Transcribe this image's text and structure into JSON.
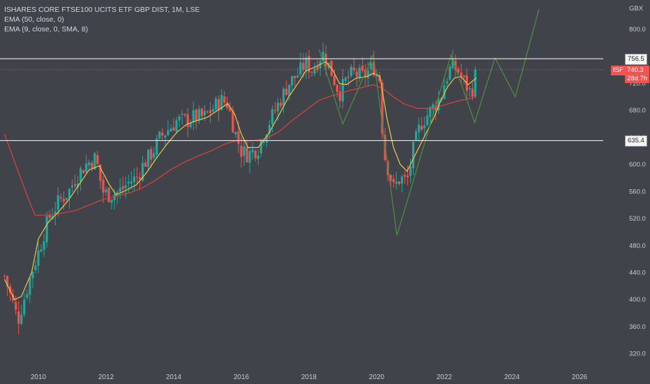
{
  "legend": {
    "title": "ISHARES CORE FTSE100 UCITS ETF GBP DIST, 1M, LSE",
    "ema50": "EMA (50, close, 0)",
    "ema9": "EMA (9, close, 0, SMA, 8)"
  },
  "axis": {
    "currency": "GBX",
    "y_ticks": [
      "800.0",
      "760.0",
      "720.0",
      "680.0",
      "640.0",
      "600.0",
      "560.0",
      "520.0",
      "480.0",
      "440.0",
      "400.0",
      "360.0",
      "320.0"
    ],
    "x_ticks": [
      "2010",
      "2012",
      "2014",
      "2016",
      "2018",
      "2020",
      "2022",
      "2024",
      "2026"
    ]
  },
  "price_tags": {
    "resistance": "756.5",
    "support": "635.4",
    "symbol": "ISF",
    "last_price": "740.3",
    "countdown": "28d 7h"
  },
  "colors": {
    "background": "#41434b",
    "up": "#26a69a",
    "down": "#ef5350",
    "ema50": "#e0413a",
    "ema9": "#e6c84a",
    "projection": "#4f8a3e",
    "hline": "#ffffff"
  },
  "chart_data": {
    "type": "candlestick",
    "interval": "1M",
    "ylim": [
      320,
      820
    ],
    "horizontal_levels": [
      756.5,
      635.4
    ],
    "last_price": 740.3,
    "close_path": [
      [
        2009.0,
        435
      ],
      [
        2009.4,
        370
      ],
      [
        2009.8,
        440
      ],
      [
        2010.0,
        470
      ],
      [
        2010.3,
        520
      ],
      [
        2010.6,
        545
      ],
      [
        2010.9,
        560
      ],
      [
        2011.1,
        580
      ],
      [
        2011.4,
        600
      ],
      [
        2011.7,
        610
      ],
      [
        2011.9,
        560
      ],
      [
        2012.1,
        555
      ],
      [
        2012.4,
        560
      ],
      [
        2012.7,
        575
      ],
      [
        2012.9,
        580
      ],
      [
        2013.1,
        600
      ],
      [
        2013.4,
        620
      ],
      [
        2013.6,
        640
      ],
      [
        2013.9,
        655
      ],
      [
        2014.1,
        665
      ],
      [
        2014.4,
        665
      ],
      [
        2014.6,
        670
      ],
      [
        2014.9,
        670
      ],
      [
        2015.1,
        680
      ],
      [
        2015.4,
        695
      ],
      [
        2015.6,
        690
      ],
      [
        2015.8,
        650
      ],
      [
        2016.0,
        620
      ],
      [
        2016.2,
        615
      ],
      [
        2016.5,
        625
      ],
      [
        2016.8,
        660
      ],
      [
        2017.1,
        690
      ],
      [
        2017.4,
        720
      ],
      [
        2017.7,
        735
      ],
      [
        2017.9,
        750
      ],
      [
        2018.1,
        740
      ],
      [
        2018.4,
        765
      ],
      [
        2018.6,
        745
      ],
      [
        2018.9,
        705
      ],
      [
        2019.1,
        725
      ],
      [
        2019.3,
        735
      ],
      [
        2019.6,
        730
      ],
      [
        2019.9,
        745
      ],
      [
        2020.1,
        725
      ],
      [
        2020.2,
        620
      ],
      [
        2020.5,
        565
      ],
      [
        2020.7,
        580
      ],
      [
        2020.9,
        575
      ],
      [
        2021.1,
        625
      ],
      [
        2021.3,
        660
      ],
      [
        2021.6,
        680
      ],
      [
        2021.9,
        700
      ],
      [
        2022.0,
        720
      ],
      [
        2022.2,
        745
      ],
      [
        2022.4,
        740
      ],
      [
        2022.6,
        720
      ],
      [
        2022.8,
        705
      ],
      [
        2022.95,
        740.3
      ]
    ],
    "ema50_path": [
      [
        2009.0,
        645
      ],
      [
        2009.4,
        590
      ],
      [
        2009.7,
        550
      ],
      [
        2009.9,
        525
      ],
      [
        2010.3,
        525
      ],
      [
        2010.7,
        528
      ],
      [
        2011.1,
        532
      ],
      [
        2011.5,
        540
      ],
      [
        2011.9,
        548
      ],
      [
        2012.3,
        553
      ],
      [
        2012.7,
        558
      ],
      [
        2013.1,
        566
      ],
      [
        2013.5,
        578
      ],
      [
        2013.9,
        592
      ],
      [
        2014.3,
        603
      ],
      [
        2014.7,
        612
      ],
      [
        2015.1,
        620
      ],
      [
        2015.5,
        630
      ],
      [
        2015.9,
        636
      ],
      [
        2016.3,
        635
      ],
      [
        2016.7,
        638
      ],
      [
        2017.1,
        648
      ],
      [
        2017.5,
        665
      ],
      [
        2017.9,
        680
      ],
      [
        2018.3,
        695
      ],
      [
        2018.7,
        702
      ],
      [
        2019.1,
        708
      ],
      [
        2019.5,
        713
      ],
      [
        2019.9,
        718
      ],
      [
        2020.2,
        712
      ],
      [
        2020.5,
        700
      ],
      [
        2020.8,
        690
      ],
      [
        2021.2,
        683
      ],
      [
        2021.6,
        683
      ],
      [
        2022.0,
        688
      ],
      [
        2022.4,
        694
      ],
      [
        2022.7,
        697
      ],
      [
        2022.95,
        700
      ]
    ],
    "ema9_path": [
      [
        2009.0,
        430
      ],
      [
        2009.3,
        400
      ],
      [
        2009.5,
        405
      ],
      [
        2009.8,
        440
      ],
      [
        2010.0,
        490
      ],
      [
        2010.3,
        515
      ],
      [
        2010.6,
        530
      ],
      [
        2010.9,
        548
      ],
      [
        2011.2,
        570
      ],
      [
        2011.5,
        592
      ],
      [
        2011.8,
        598
      ],
      [
        2012.1,
        570
      ],
      [
        2012.3,
        555
      ],
      [
        2012.6,
        562
      ],
      [
        2012.9,
        570
      ],
      [
        2013.2,
        588
      ],
      [
        2013.5,
        610
      ],
      [
        2013.8,
        630
      ],
      [
        2014.1,
        648
      ],
      [
        2014.4,
        660
      ],
      [
        2014.7,
        665
      ],
      [
        2015.0,
        670
      ],
      [
        2015.3,
        680
      ],
      [
        2015.6,
        690
      ],
      [
        2015.8,
        675
      ],
      [
        2016.0,
        645
      ],
      [
        2016.2,
        625
      ],
      [
        2016.5,
        625
      ],
      [
        2016.8,
        645
      ],
      [
        2017.1,
        672
      ],
      [
        2017.4,
        700
      ],
      [
        2017.7,
        722
      ],
      [
        2017.9,
        738
      ],
      [
        2018.2,
        745
      ],
      [
        2018.5,
        752
      ],
      [
        2018.7,
        740
      ],
      [
        2018.9,
        720
      ],
      [
        2019.1,
        718
      ],
      [
        2019.4,
        728
      ],
      [
        2019.7,
        730
      ],
      [
        2019.9,
        735
      ],
      [
        2020.1,
        730
      ],
      [
        2020.3,
        670
      ],
      [
        2020.5,
        625
      ],
      [
        2020.7,
        600
      ],
      [
        2020.9,
        590
      ],
      [
        2021.1,
        610
      ],
      [
        2021.4,
        640
      ],
      [
        2021.7,
        670
      ],
      [
        2021.9,
        695
      ],
      [
        2022.1,
        715
      ],
      [
        2022.3,
        728
      ],
      [
        2022.5,
        730
      ],
      [
        2022.7,
        718
      ],
      [
        2022.95,
        728
      ]
    ],
    "projection_path": [
      [
        2018.3,
        770
      ],
      [
        2019.0,
        660
      ],
      [
        2019.9,
        762
      ],
      [
        2020.6,
        495
      ],
      [
        2022.2,
        762
      ],
      [
        2022.9,
        662
      ],
      [
        2023.5,
        758
      ],
      [
        2024.1,
        700
      ],
      [
        2024.8,
        830
      ]
    ]
  }
}
